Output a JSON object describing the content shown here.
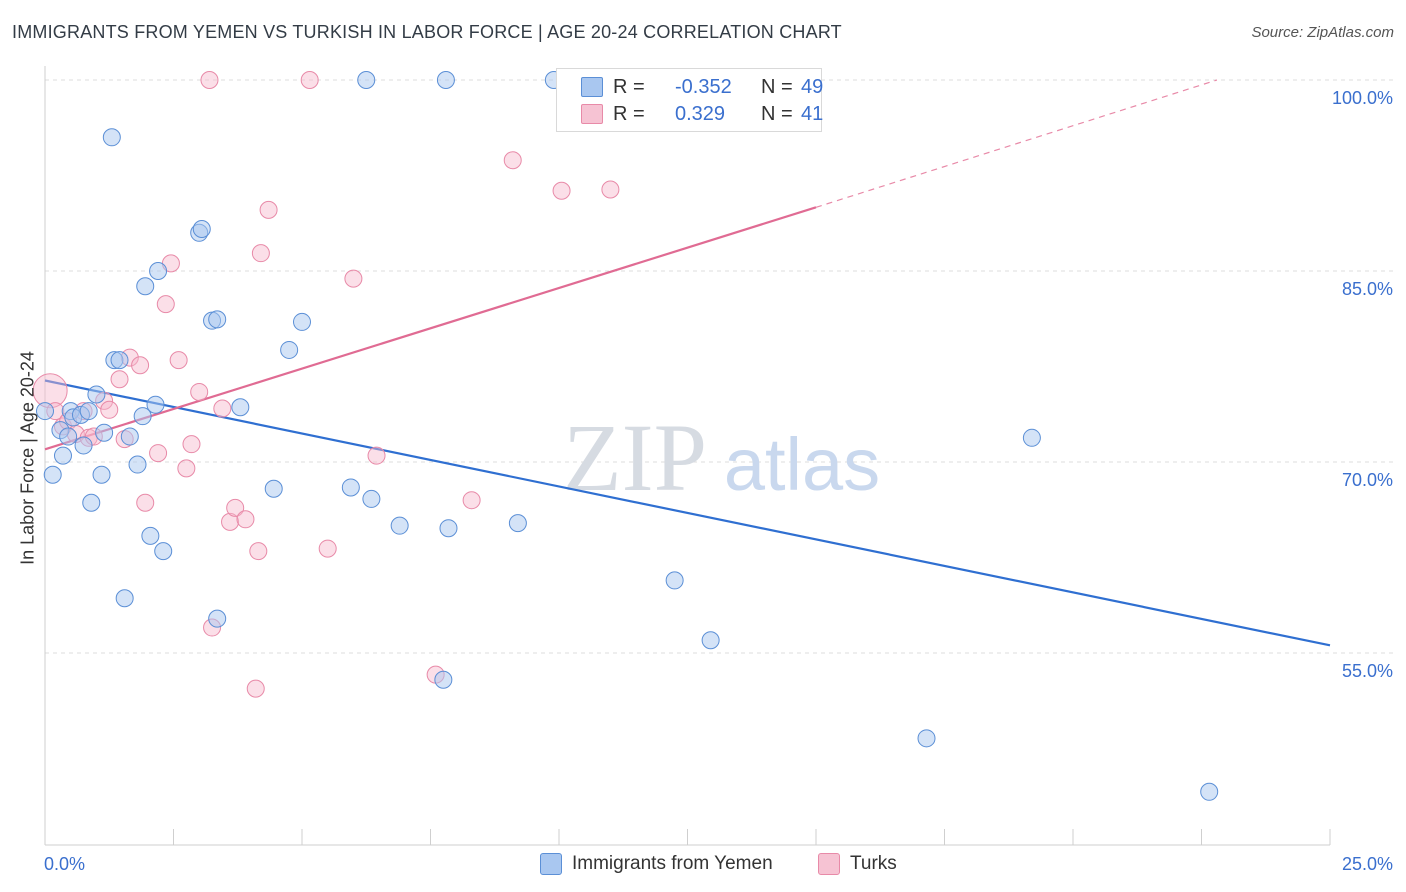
{
  "title": "IMMIGRANTS FROM YEMEN VS TURKISH IN LABOR FORCE | AGE 20-24 CORRELATION CHART",
  "source": "Source: ZipAtlas.com",
  "watermark": {
    "zip": "ZIP",
    "atlas": "atlas"
  },
  "legend": {
    "rows": [
      {
        "r_label": "R =",
        "r_value": "-0.352",
        "n_label": "N =",
        "n_value": "49"
      },
      {
        "r_label": "R =",
        "r_value": "0.329",
        "n_label": "N =",
        "n_value": "41"
      }
    ]
  },
  "bottom_legend": {
    "series1": "Immigrants from Yemen",
    "series2": "Turks"
  },
  "colors": {
    "blue_fill": "#a9c7f0",
    "blue_stroke": "#5b8fd6",
    "blue_line": "#2f6fd1",
    "pink_fill": "#f6b8cb",
    "pink_stroke": "#e88aa8",
    "pink_line": "#e06b93",
    "tick_label": "#3a6fce",
    "grid": "#dddddd"
  },
  "chart_data": {
    "type": "scatter",
    "title": "IMMIGRANTS FROM YEMEN VS TURKISH IN LABOR FORCE | AGE 20-24 CORRELATION CHART",
    "xlabel": "",
    "ylabel": "In Labor Force | Age 20-24",
    "xlim": [
      0,
      25
    ],
    "ylim": [
      37,
      101
    ],
    "x_tick_labels": [
      "0.0%",
      "25.0%"
    ],
    "y_ticks": [
      55,
      70,
      85,
      100
    ],
    "y_tick_labels": [
      "55.0%",
      "70.0%",
      "85.0%",
      "100.0%"
    ],
    "grid": true,
    "legend_position": "top-center",
    "series": [
      {
        "name": "Immigrants from Yemen",
        "R": -0.352,
        "N": 49,
        "trend": {
          "x": [
            0,
            25
          ],
          "y": [
            76.4,
            55.6
          ]
        },
        "points": [
          [
            0.0,
            74.0
          ],
          [
            0.15,
            69.0
          ],
          [
            0.3,
            72.5
          ],
          [
            0.35,
            70.5
          ],
          [
            0.45,
            72.0
          ],
          [
            0.5,
            74.0
          ],
          [
            0.55,
            73.5
          ],
          [
            0.7,
            73.7
          ],
          [
            0.75,
            71.3
          ],
          [
            0.85,
            74.0
          ],
          [
            0.9,
            66.8
          ],
          [
            1.0,
            75.3
          ],
          [
            1.1,
            69.0
          ],
          [
            1.15,
            72.3
          ],
          [
            1.3,
            95.5
          ],
          [
            1.35,
            78.0
          ],
          [
            1.45,
            78.0
          ],
          [
            1.55,
            59.3
          ],
          [
            1.65,
            72.0
          ],
          [
            1.8,
            69.8
          ],
          [
            1.9,
            73.6
          ],
          [
            1.95,
            83.8
          ],
          [
            2.05,
            64.2
          ],
          [
            2.15,
            74.5
          ],
          [
            2.2,
            85.0
          ],
          [
            2.3,
            63.0
          ],
          [
            3.0,
            88.0
          ],
          [
            3.05,
            88.3
          ],
          [
            3.25,
            81.1
          ],
          [
            3.35,
            81.2
          ],
          [
            3.35,
            57.7
          ],
          [
            3.8,
            74.3
          ],
          [
            4.45,
            67.9
          ],
          [
            4.75,
            78.8
          ],
          [
            5.0,
            81.0
          ],
          [
            5.95,
            68.0
          ],
          [
            6.25,
            100.0
          ],
          [
            6.35,
            67.1
          ],
          [
            6.9,
            65.0
          ],
          [
            7.75,
            52.9
          ],
          [
            7.85,
            64.8
          ],
          [
            7.8,
            100.0
          ],
          [
            9.2,
            65.2
          ],
          [
            9.9,
            100.0
          ],
          [
            12.25,
            60.7
          ],
          [
            12.95,
            56.0
          ],
          [
            19.2,
            71.9
          ],
          [
            17.15,
            48.3
          ],
          [
            22.65,
            44.1
          ]
        ]
      },
      {
        "name": "Turks",
        "R": 0.329,
        "N": 41,
        "trend": {
          "x": [
            0,
            15
          ],
          "y": [
            71.0,
            90.0
          ]
        },
        "trend_dashed": {
          "x": [
            15,
            22.8
          ],
          "y": [
            90.0,
            100.0
          ]
        },
        "points": [
          [
            0.1,
            75.6
          ],
          [
            0.2,
            74.0
          ],
          [
            0.35,
            72.8
          ],
          [
            0.45,
            73.2
          ],
          [
            0.6,
            72.2
          ],
          [
            0.75,
            74.0
          ],
          [
            0.85,
            71.9
          ],
          [
            0.95,
            72.0
          ],
          [
            1.15,
            74.8
          ],
          [
            1.25,
            74.1
          ],
          [
            1.45,
            76.5
          ],
          [
            1.55,
            71.8
          ],
          [
            1.65,
            78.2
          ],
          [
            1.85,
            77.6
          ],
          [
            1.95,
            66.8
          ],
          [
            2.2,
            70.7
          ],
          [
            2.35,
            82.4
          ],
          [
            2.45,
            85.6
          ],
          [
            2.6,
            78.0
          ],
          [
            2.75,
            69.5
          ],
          [
            2.85,
            71.4
          ],
          [
            3.0,
            75.5
          ],
          [
            3.2,
            100.0
          ],
          [
            3.25,
            57.0
          ],
          [
            3.45,
            74.2
          ],
          [
            3.6,
            65.3
          ],
          [
            3.7,
            66.4
          ],
          [
            3.9,
            65.5
          ],
          [
            4.1,
            52.2
          ],
          [
            4.15,
            63.0
          ],
          [
            4.2,
            86.4
          ],
          [
            4.35,
            89.8
          ],
          [
            5.15,
            100.0
          ],
          [
            5.5,
            63.2
          ],
          [
            6.0,
            84.4
          ],
          [
            6.45,
            70.5
          ],
          [
            7.6,
            53.3
          ],
          [
            8.3,
            67.0
          ],
          [
            9.1,
            93.7
          ],
          [
            10.05,
            91.3
          ],
          [
            11.0,
            91.4
          ]
        ]
      }
    ]
  }
}
